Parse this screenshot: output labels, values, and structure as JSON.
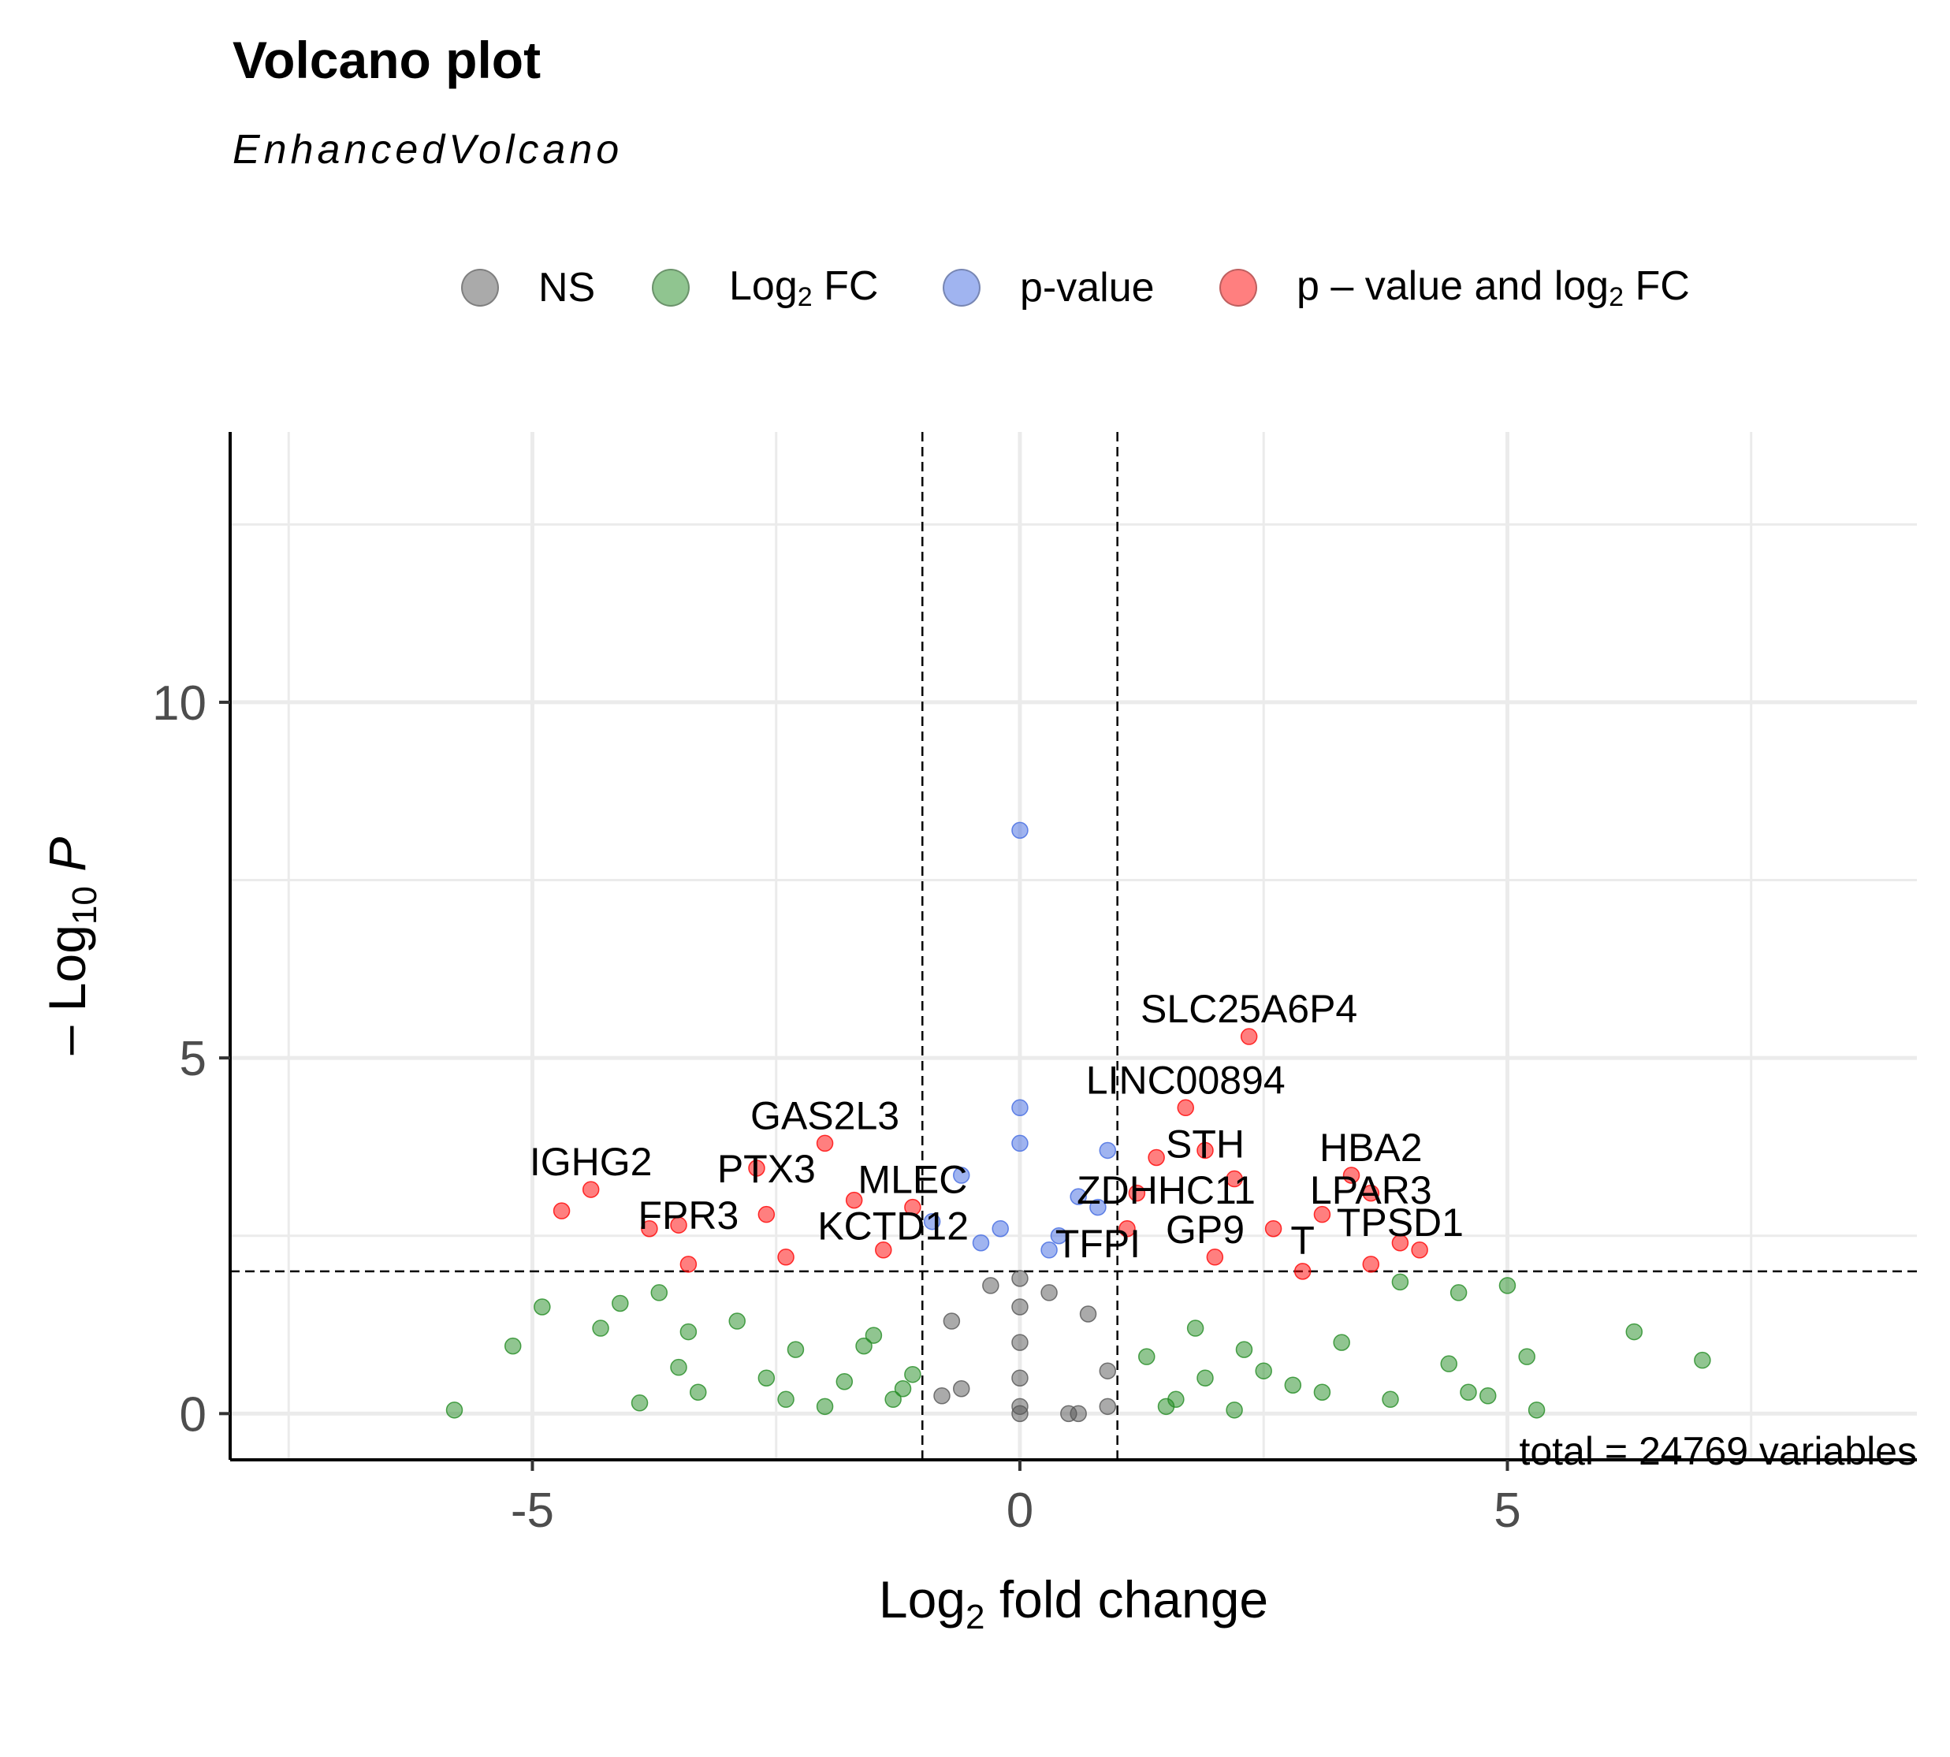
{
  "header": {
    "title": "Volcano plot",
    "subtitle": "EnhancedVolcano"
  },
  "caption": "total = 24769 variables",
  "legend": [
    {
      "key": "NS",
      "color": "#555555"
    },
    {
      "key": "Log2 FC",
      "color": "#228B22"
    },
    {
      "key": "p-value",
      "color": "#4169E1"
    },
    {
      "key": "p – value and log2 FC",
      "color": "#FF0000"
    }
  ],
  "chart_data": {
    "type": "scatter",
    "title": "Volcano plot",
    "subtitle": "EnhancedVolcano",
    "xlabel": "Log2 fold change",
    "ylabel": "– Log10 P",
    "xlim": [
      -8.1,
      9.2
    ],
    "ylim": [
      -0.65,
      13.8
    ],
    "x_ticks": [
      -5,
      0,
      5
    ],
    "y_ticks": [
      0,
      5,
      10
    ],
    "grid": true,
    "legend_position": "top",
    "thresholds": {
      "log2fc": [
        -1,
        1
      ],
      "neg_log10_p": 2
    },
    "series_colors": {
      "NS": "#555555",
      "Log2 FC": "#228B22",
      "p-value": "#4169E1",
      "p – value and log2 FC": "#FF0000"
    },
    "series": [
      {
        "name": "p – value and log2 FC",
        "x": [
          2.35,
          1.7,
          -4.7,
          -4.4,
          -3.8,
          -3.5,
          -3.4,
          -2.7,
          -2.6,
          -2.4,
          -2.0,
          -1.7,
          -1.4,
          -1.1,
          1.4,
          1.9,
          2.2,
          2.6,
          3.4,
          3.6,
          3.9,
          4.1,
          3.1,
          3.6,
          2.9,
          2.0,
          1.2,
          1.1
        ],
        "y": [
          5.3,
          4.3,
          2.85,
          3.15,
          2.6,
          2.65,
          2.1,
          3.45,
          2.8,
          2.2,
          3.8,
          3.0,
          2.3,
          2.9,
          3.6,
          3.7,
          3.3,
          2.6,
          3.35,
          3.1,
          2.4,
          2.3,
          2.8,
          2.1,
          2.0,
          2.2,
          3.1,
          2.6
        ]
      },
      {
        "name": "p-value",
        "x": [
          0.0,
          0.0,
          0.9,
          0.0,
          -0.6,
          -0.9,
          0.6,
          0.8,
          0.4,
          -0.4,
          0.3,
          -0.2
        ],
        "y": [
          8.2,
          4.3,
          3.7,
          3.8,
          3.35,
          2.7,
          3.05,
          2.9,
          2.5,
          2.4,
          2.3,
          2.6
        ]
      },
      {
        "name": "Log2 FC",
        "x": [
          -5.8,
          -5.2,
          -4.9,
          -4.3,
          -4.1,
          -3.9,
          -3.7,
          -3.4,
          -3.3,
          -2.9,
          -2.6,
          -2.3,
          -2.0,
          -1.8,
          -1.5,
          -1.3,
          -1.2,
          1.3,
          1.6,
          1.9,
          2.3,
          2.8,
          3.3,
          3.8,
          4.4,
          4.6,
          5.0,
          5.2,
          5.3,
          6.3,
          7.0,
          -3.5,
          -2.4,
          -1.1,
          1.5,
          2.5,
          3.1,
          3.9,
          4.5,
          1.8,
          -1.6,
          2.2,
          4.8
        ],
        "y": [
          0.05,
          0.95,
          1.5,
          1.2,
          1.55,
          0.15,
          1.7,
          1.15,
          0.3,
          1.3,
          0.5,
          0.9,
          0.1,
          0.45,
          1.1,
          0.2,
          0.35,
          0.8,
          0.2,
          0.5,
          0.9,
          0.4,
          1.0,
          0.2,
          0.7,
          0.3,
          1.8,
          0.8,
          0.05,
          1.15,
          0.75,
          0.65,
          0.2,
          0.55,
          0.1,
          0.6,
          0.3,
          1.85,
          1.7,
          1.2,
          0.95,
          0.05,
          0.25
        ]
      },
      {
        "name": "NS",
        "x": [
          0.0,
          0.0,
          0.0,
          0.0,
          0.0,
          0.0,
          -0.6,
          -0.8,
          0.5,
          0.6,
          0.9,
          0.9,
          -0.3,
          0.3,
          -0.7,
          0.7
        ],
        "y": [
          0.1,
          0.5,
          1.0,
          1.5,
          1.9,
          0.0,
          0.35,
          0.25,
          0.0,
          0.0,
          0.6,
          0.1,
          1.8,
          1.7,
          1.3,
          1.4
        ]
      }
    ],
    "labels": [
      {
        "text": "SLC25A6P4",
        "x": 2.35,
        "y": 5.3
      },
      {
        "text": "LINC00894",
        "x": 1.7,
        "y": 4.3
      },
      {
        "text": "GAS2L3",
        "x": -2.0,
        "y": 3.8
      },
      {
        "text": "STH",
        "x": 1.9,
        "y": 3.4
      },
      {
        "text": "HBA2",
        "x": 3.6,
        "y": 3.35
      },
      {
        "text": "IGHG2",
        "x": -4.4,
        "y": 3.15
      },
      {
        "text": "PTX3",
        "x": -2.6,
        "y": 3.05
      },
      {
        "text": "MLEC",
        "x": -1.1,
        "y": 2.9
      },
      {
        "text": "ZDHHC11",
        "x": 1.5,
        "y": 2.75
      },
      {
        "text": "LPAR3",
        "x": 3.6,
        "y": 2.75
      },
      {
        "text": "FPR3",
        "x": -3.4,
        "y": 2.4
      },
      {
        "text": "KCTD12",
        "x": -1.3,
        "y": 2.25
      },
      {
        "text": "TFPI",
        "x": 0.8,
        "y": 2.0
      },
      {
        "text": "GP9",
        "x": 1.9,
        "y": 2.2
      },
      {
        "text": "T",
        "x": 2.9,
        "y": 2.05
      },
      {
        "text": "TPSD1",
        "x": 3.9,
        "y": 2.3
      }
    ]
  }
}
